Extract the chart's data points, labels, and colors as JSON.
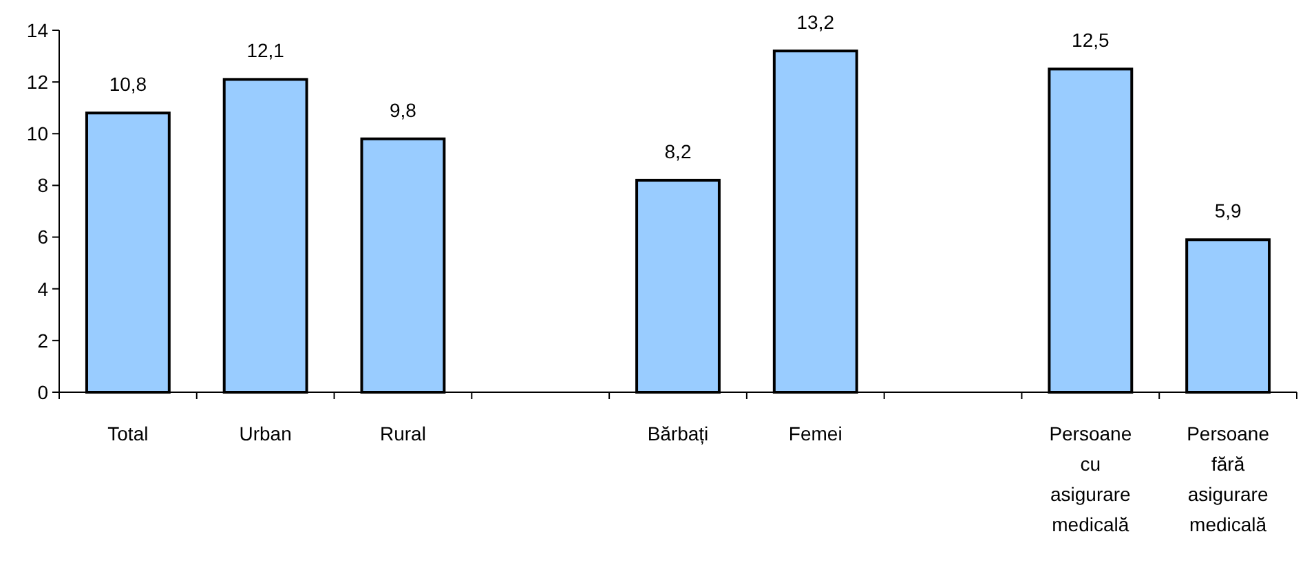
{
  "chart_data": {
    "type": "bar",
    "categories": [
      "Total",
      "Urban",
      "Rural",
      null,
      "Bărbați",
      "Femei",
      null,
      "Persoane cu asigurare medicală",
      "Persoane fără asigurare medicală"
    ],
    "values": [
      10.8,
      12.1,
      9.8,
      null,
      8.2,
      13.2,
      null,
      12.5,
      5.9
    ],
    "value_labels": [
      "10,8",
      "12,1",
      "9,8",
      null,
      "8,2",
      "13,2",
      null,
      "12,5",
      "5,9"
    ],
    "color": "#99ccff",
    "ylim": [
      0,
      14
    ],
    "yticks": [
      0,
      2,
      4,
      6,
      8,
      10,
      12,
      14
    ],
    "grid": false
  }
}
